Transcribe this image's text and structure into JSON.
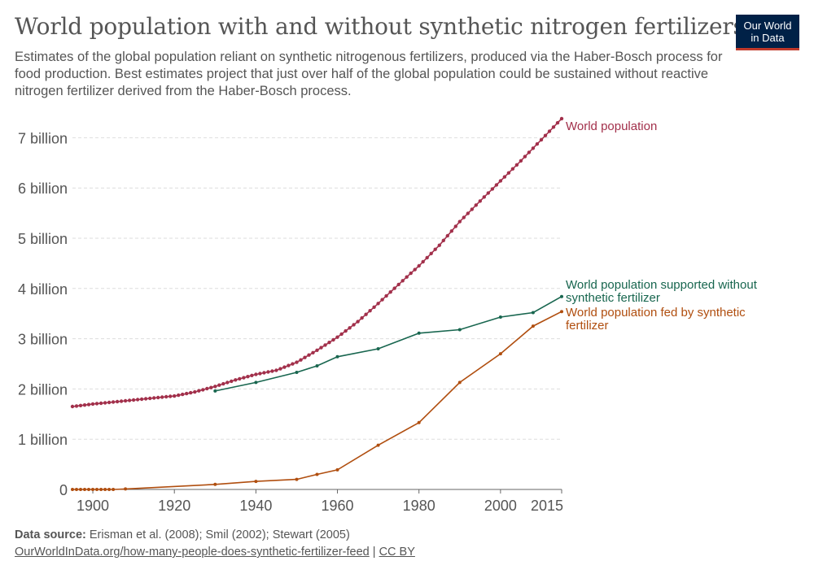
{
  "header": {
    "title": "World population with and without synthetic nitrogen fertilizers",
    "subtitle": "Estimates of the global population reliant on synthetic nitrogenous fertilizers, produced via the Haber-Bosch process for food production. Best estimates project that just over half of the global population could be sustained without reactive nitrogen fertilizer derived from the Haber-Bosch process."
  },
  "logo": {
    "line1": "Our World",
    "line2": "in Data",
    "color": "#002147",
    "accent": "#c0392b"
  },
  "footer": {
    "source_label": "Data source:",
    "source_text": " Erisman et al. (2008); Smil (2002); Stewart (2005)",
    "url": "OurWorldInData.org/how-many-people-does-synthetic-fertilizer-feed",
    "separator": " | ",
    "license": "CC BY"
  },
  "chart_data": {
    "type": "line",
    "title": "World population with and without synthetic nitrogen fertilizers",
    "xlim": [
      1895,
      2015
    ],
    "ylim": [
      0,
      7400000000
    ],
    "x_ticks": [
      1900,
      1920,
      1940,
      1960,
      1980,
      2000,
      2015
    ],
    "y_ticks": [
      {
        "value": 0,
        "label": "0"
      },
      {
        "value": 1000000000,
        "label": "1 billion"
      },
      {
        "value": 2000000000,
        "label": "2 billion"
      },
      {
        "value": 3000000000,
        "label": "3 billion"
      },
      {
        "value": 4000000000,
        "label": "4 billion"
      },
      {
        "value": 5000000000,
        "label": "5 billion"
      },
      {
        "value": 6000000000,
        "label": "6 billion"
      },
      {
        "value": 7000000000,
        "label": "7 billion"
      }
    ],
    "grid": "horizontal-dashed",
    "series": [
      {
        "name": "World population",
        "color": "#a2304b",
        "dense_markers": true,
        "points": [
          [
            1895,
            1650000000
          ],
          [
            1900,
            1700000000
          ],
          [
            1905,
            1740000000
          ],
          [
            1910,
            1780000000
          ],
          [
            1915,
            1820000000
          ],
          [
            1920,
            1860000000
          ],
          [
            1925,
            1940000000
          ],
          [
            1930,
            2050000000
          ],
          [
            1935,
            2180000000
          ],
          [
            1940,
            2290000000
          ],
          [
            1945,
            2370000000
          ],
          [
            1950,
            2530000000
          ],
          [
            1955,
            2770000000
          ],
          [
            1960,
            3030000000
          ],
          [
            1965,
            3340000000
          ],
          [
            1970,
            3700000000
          ],
          [
            1975,
            4080000000
          ],
          [
            1980,
            4450000000
          ],
          [
            1985,
            4860000000
          ],
          [
            1990,
            5330000000
          ],
          [
            1995,
            5740000000
          ],
          [
            2000,
            6140000000
          ],
          [
            2005,
            6540000000
          ],
          [
            2010,
            6960000000
          ],
          [
            2015,
            7380000000
          ]
        ]
      },
      {
        "name": "World population supported without synthetic fertilizer",
        "label_lines": [
          "World population supported without",
          "synthetic fertilizer"
        ],
        "color": "#18664f",
        "dense_markers": false,
        "points": [
          [
            1930,
            1960000000
          ],
          [
            1940,
            2130000000
          ],
          [
            1950,
            2330000000
          ],
          [
            1955,
            2460000000
          ],
          [
            1960,
            2640000000
          ],
          [
            1970,
            2800000000
          ],
          [
            1980,
            3110000000
          ],
          [
            1990,
            3180000000
          ],
          [
            2000,
            3430000000
          ],
          [
            2008,
            3520000000
          ],
          [
            2015,
            3840000000
          ]
        ]
      },
      {
        "name": "World population fed by synthetic fertilizer",
        "label_lines": [
          "World population fed by synthetic",
          "fertilizer"
        ],
        "color": "#b04e0f",
        "dense_markers": false,
        "points": [
          [
            1895,
            0
          ],
          [
            1896,
            0
          ],
          [
            1897,
            0
          ],
          [
            1898,
            0
          ],
          [
            1899,
            0
          ],
          [
            1900,
            0
          ],
          [
            1901,
            0
          ],
          [
            1902,
            0
          ],
          [
            1903,
            0
          ],
          [
            1904,
            0
          ],
          [
            1905,
            0
          ],
          [
            1908,
            10000000
          ],
          [
            1930,
            100000000
          ],
          [
            1940,
            160000000
          ],
          [
            1950,
            200000000
          ],
          [
            1955,
            300000000
          ],
          [
            1960,
            390000000
          ],
          [
            1970,
            880000000
          ],
          [
            1980,
            1330000000
          ],
          [
            1990,
            2130000000
          ],
          [
            2000,
            2700000000
          ],
          [
            2008,
            3250000000
          ],
          [
            2015,
            3540000000
          ]
        ]
      }
    ],
    "series_labels": {
      "World population": [
        "World population"
      ]
    }
  }
}
